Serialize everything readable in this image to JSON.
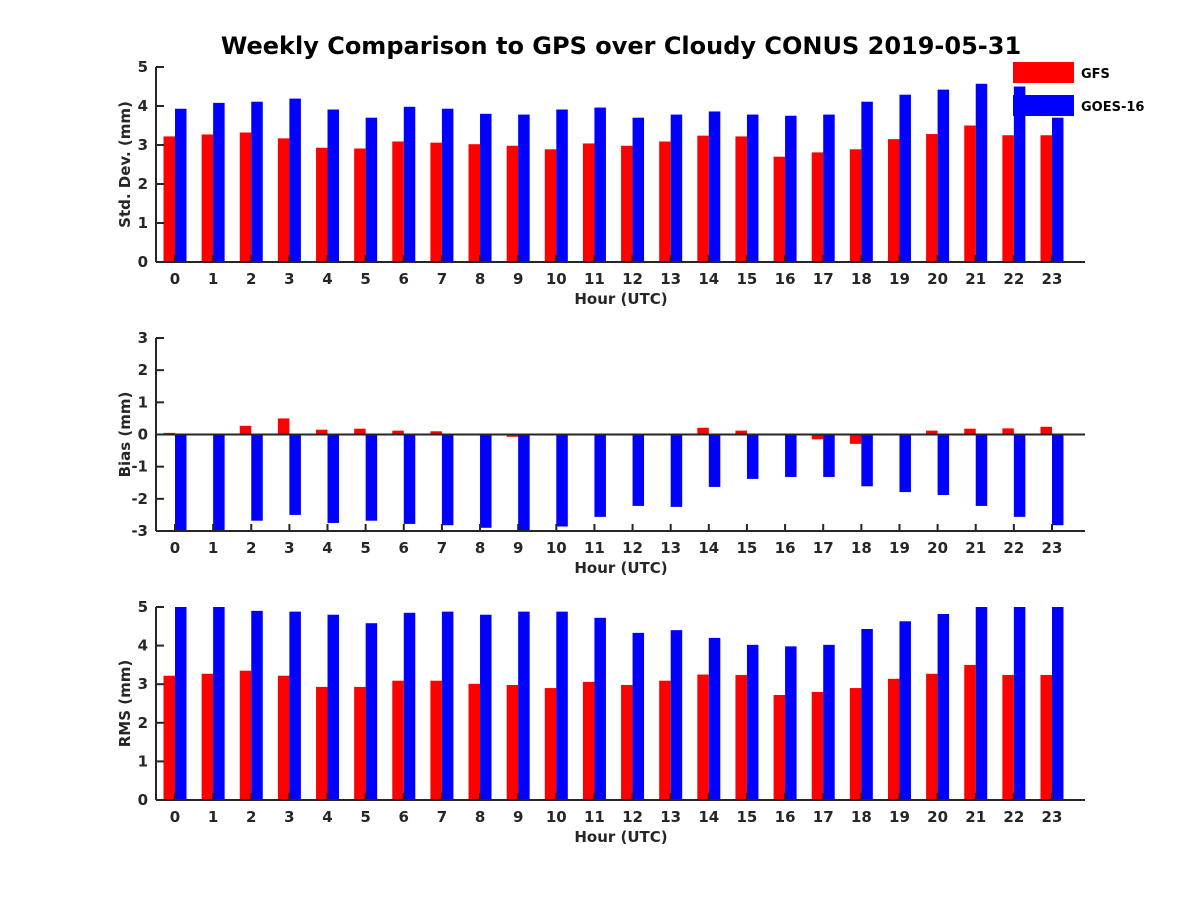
{
  "colors": {
    "gfs": "#ff0000",
    "goes": "#0000ff",
    "axis": "#262626"
  },
  "chart_data": {
    "title": "Weekly Comparison to GPS over Cloudy CONUS 2019-05-31",
    "legend": {
      "placement": "top-right",
      "entries": [
        "GFS",
        "GOES-16"
      ]
    },
    "panels": [
      {
        "type": "bar",
        "ylabel": "Std. Dev. (mm)",
        "xlabel": "Hour (UTC)",
        "ylim": [
          0,
          5
        ],
        "yticks": [
          "0",
          "1",
          "2",
          "3",
          "4",
          "5"
        ],
        "categories": [
          "0",
          "1",
          "2",
          "3",
          "4",
          "5",
          "6",
          "7",
          "8",
          "9",
          "10",
          "11",
          "12",
          "13",
          "14",
          "15",
          "16",
          "17",
          "18",
          "19",
          "20",
          "21",
          "22",
          "23"
        ],
        "series": [
          {
            "name": "GFS",
            "values": [
              3.22,
              3.27,
              3.32,
              3.17,
              2.93,
              2.91,
              3.09,
              3.06,
              3.02,
              2.98,
              2.89,
              3.04,
              2.98,
              3.09,
              3.24,
              3.22,
              2.7,
              2.81,
              2.89,
              3.15,
              3.28,
              3.5,
              3.25,
              3.25
            ]
          },
          {
            "name": "GOES-16",
            "values": [
              3.93,
              4.08,
              4.11,
              4.19,
              3.91,
              3.7,
              3.98,
              3.93,
              3.8,
              3.78,
              3.91,
              3.96,
              3.7,
              3.78,
              3.86,
              3.78,
              3.75,
              3.78,
              4.11,
              4.29,
              4.42,
              4.57,
              4.5,
              3.7
            ]
          }
        ]
      },
      {
        "type": "bar",
        "ylabel": "Bias (mm)",
        "xlabel": "Hour (UTC)",
        "ylim": [
          -3,
          3
        ],
        "yticks": [
          "-3",
          "-2",
          "-1",
          "0",
          "1",
          "2",
          "3"
        ],
        "categories": [
          "0",
          "1",
          "2",
          "3",
          "4",
          "5",
          "6",
          "7",
          "8",
          "9",
          "10",
          "11",
          "12",
          "13",
          "14",
          "15",
          "16",
          "17",
          "18",
          "19",
          "20",
          "21",
          "22",
          "23"
        ],
        "series": [
          {
            "name": "GFS",
            "values": [
              0.05,
              0.0,
              0.27,
              0.5,
              0.15,
              0.18,
              0.12,
              0.1,
              -0.02,
              -0.07,
              0.0,
              0.03,
              0.02,
              0.0,
              0.21,
              0.12,
              -0.03,
              -0.15,
              -0.29,
              -0.02,
              0.12,
              0.18,
              0.19,
              0.24
            ]
          },
          {
            "name": "GOES-16",
            "values": [
              -3.0,
              -3.0,
              -2.68,
              -2.5,
              -2.75,
              -2.68,
              -2.78,
              -2.82,
              -2.9,
              -3.0,
              -2.86,
              -2.56,
              -2.22,
              -2.25,
              -1.63,
              -1.38,
              -1.32,
              -1.32,
              -1.61,
              -1.79,
              -1.88,
              -2.22,
              -2.56,
              -2.82
            ]
          }
        ]
      },
      {
        "type": "bar",
        "ylabel": "RMS (mm)",
        "xlabel": "Hour (UTC)",
        "ylim": [
          0,
          5
        ],
        "yticks": [
          "0",
          "1",
          "2",
          "3",
          "4",
          "5"
        ],
        "categories": [
          "0",
          "1",
          "2",
          "3",
          "4",
          "5",
          "6",
          "7",
          "8",
          "9",
          "10",
          "11",
          "12",
          "13",
          "14",
          "15",
          "16",
          "17",
          "18",
          "19",
          "20",
          "21",
          "22",
          "23"
        ],
        "series": [
          {
            "name": "GFS",
            "values": [
              3.22,
              3.27,
              3.35,
              3.22,
              2.93,
              2.93,
              3.09,
              3.09,
              3.01,
              2.98,
              2.9,
              3.06,
              2.98,
              3.09,
              3.25,
              3.24,
              2.72,
              2.8,
              2.9,
              3.14,
              3.27,
              3.5,
              3.24,
              3.24
            ]
          },
          {
            "name": "GOES-16",
            "values": [
              5.0,
              5.0,
              4.9,
              4.88,
              4.8,
              4.58,
              4.85,
              4.88,
              4.8,
              4.88,
              4.88,
              4.72,
              4.33,
              4.4,
              4.2,
              4.02,
              3.98,
              4.02,
              4.43,
              4.63,
              4.82,
              5.0,
              5.0,
              5.0
            ]
          }
        ]
      }
    ]
  }
}
